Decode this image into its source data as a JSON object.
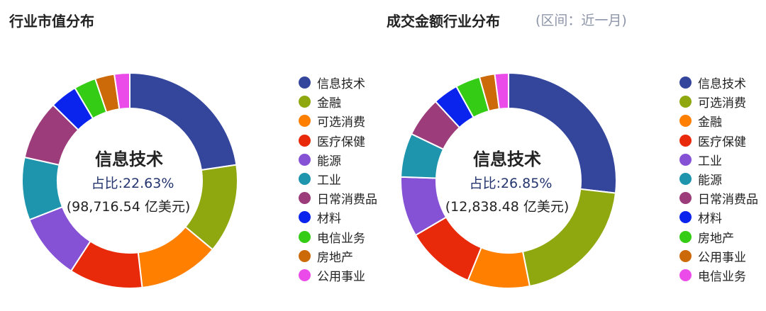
{
  "chart_data": [
    {
      "type": "pie",
      "title": "行业市值分布",
      "center": {
        "label": "信息技术",
        "share_text": "占比:22.63%",
        "amount_text": "(98,716.54 亿美元)"
      },
      "series": [
        {
          "name": "信息技术",
          "value": 22.63,
          "color": "#34469c"
        },
        {
          "name": "金融",
          "value": 13.4,
          "color": "#8fa80f"
        },
        {
          "name": "可选消费",
          "value": 12.1,
          "color": "#ff7f00"
        },
        {
          "name": "医疗保健",
          "value": 11.0,
          "color": "#e8290a"
        },
        {
          "name": "能源",
          "value": 9.9,
          "color": "#8552d6"
        },
        {
          "name": "工业",
          "value": 9.4,
          "color": "#1e95ad"
        },
        {
          "name": "日常消费品",
          "value": 8.9,
          "color": "#9c3c7a"
        },
        {
          "name": "材料",
          "value": 4.1,
          "color": "#0a24ee"
        },
        {
          "name": "电信业务",
          "value": 3.3,
          "color": "#34cc14"
        },
        {
          "name": "房地产",
          "value": 2.9,
          "color": "#cc6a0a"
        },
        {
          "name": "公用事业",
          "value": 2.3,
          "color": "#ea4be9"
        }
      ]
    },
    {
      "type": "pie",
      "title": "成交金额行业分布",
      "subtitle": "(区间：近一月)",
      "center": {
        "label": "信息技术",
        "share_text": "占比:26.85%",
        "amount_text": "(12,838.48 亿美元)"
      },
      "series": [
        {
          "name": "信息技术",
          "value": 26.85,
          "color": "#34469c"
        },
        {
          "name": "可选消费",
          "value": 20.0,
          "color": "#8fa80f"
        },
        {
          "name": "金融",
          "value": 9.3,
          "color": "#ff7f00"
        },
        {
          "name": "医疗保健",
          "value": 10.4,
          "color": "#e8290a"
        },
        {
          "name": "工业",
          "value": 9.0,
          "color": "#8552d6"
        },
        {
          "name": "能源",
          "value": 6.6,
          "color": "#1e95ad"
        },
        {
          "name": "日常消费品",
          "value": 6.0,
          "color": "#9c3c7a"
        },
        {
          "name": "材料",
          "value": 3.8,
          "color": "#0a24ee"
        },
        {
          "name": "房地产",
          "value": 3.7,
          "color": "#34cc14"
        },
        {
          "name": "公用事业",
          "value": 2.3,
          "color": "#cc6a0a"
        },
        {
          "name": "电信业务",
          "value": 2.05,
          "color": "#ea4be9"
        }
      ]
    }
  ]
}
